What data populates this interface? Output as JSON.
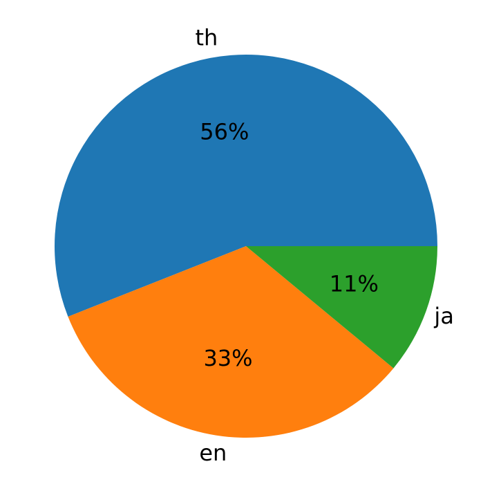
{
  "chart_data": {
    "type": "pie",
    "categories": [
      "th",
      "en",
      "ja"
    ],
    "values": [
      56,
      33,
      11
    ],
    "value_labels": [
      "56%",
      "33%",
      "11%"
    ],
    "colors": [
      "#1f77b4",
      "#ff7f0e",
      "#2ca02c"
    ]
  }
}
